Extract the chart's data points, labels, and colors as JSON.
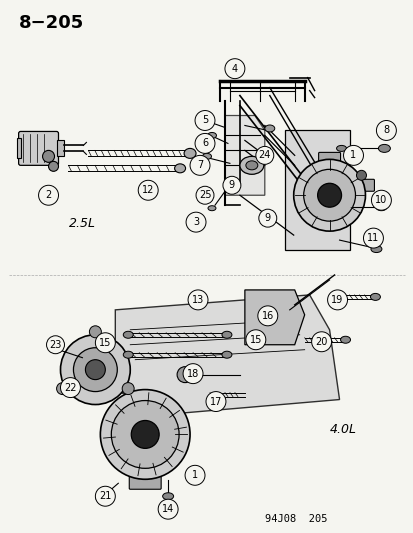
{
  "title": "8−205",
  "background_color": "#f5f5f0",
  "label_2_5L": "2.5L",
  "label_4_0L": "4.0L",
  "footer": "94J08  205",
  "fig_width": 4.14,
  "fig_height": 5.33,
  "dpi": 100
}
